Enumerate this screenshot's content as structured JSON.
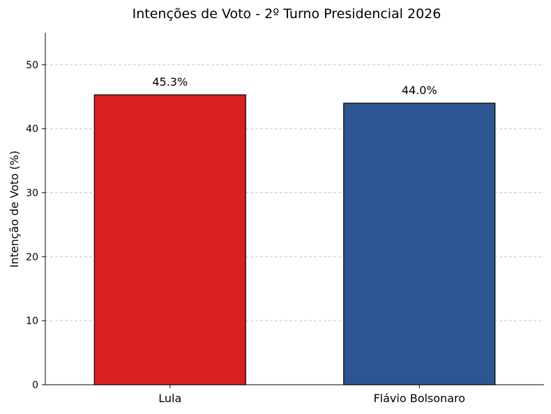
{
  "chart_data": {
    "type": "bar",
    "title": "Intenções de Voto - 2º Turno Presidencial 2026",
    "xlabel": "",
    "ylabel": "Intenção de Voto (%)",
    "categories": [
      "Lula",
      "Flávio Bolsonaro"
    ],
    "values": [
      45.3,
      44.0
    ],
    "value_labels": [
      "45.3%",
      "44.0%"
    ],
    "colors": [
      "#d92121",
      "#2d5591"
    ],
    "ylim": [
      0,
      55
    ],
    "yticks": [
      0,
      10,
      20,
      30,
      40,
      50
    ],
    "grid": "y-dashed",
    "legend": "none"
  }
}
